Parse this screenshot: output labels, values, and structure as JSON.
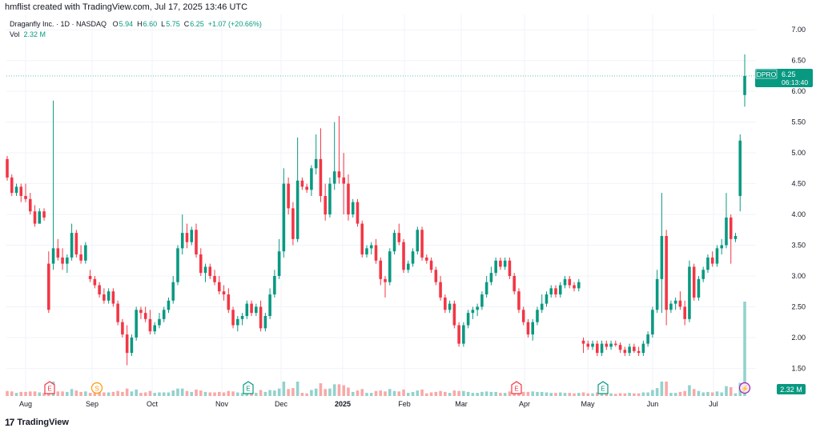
{
  "header": {
    "creator_text": "hmflist created with TradingView.com, Jul 17, 2025 13:46 UTC"
  },
  "legend": {
    "symbol_line": "Draganfly Inc. · 1D · NASDAQ",
    "o_label": "O",
    "o_value": "5.94",
    "h_label": "H",
    "h_value": "6.60",
    "l_label": "L",
    "l_value": "5.75",
    "c_label": "C",
    "c_value": "6.25",
    "change": "+1.07 (+20.66%)",
    "vol_label": "Vol",
    "vol_value": "2.32 M"
  },
  "badges": {
    "price_ticker": "DPRO",
    "price_value": "6.25",
    "countdown": "06:13:40",
    "volume_value": "2.32 M"
  },
  "footer": {
    "brand": "TradingView"
  },
  "colors": {
    "up": "#089981",
    "down": "#f23645",
    "vol_up": "#92d2cc",
    "vol_down": "#f7a9a7",
    "grid": "#f0f3fa",
    "axis_text": "#131722"
  },
  "chart_data": {
    "type": "candlestick",
    "y_ticks": [
      "7.00",
      "6.50",
      "6.00",
      "5.50",
      "5.00",
      "4.50",
      "4.00",
      "3.50",
      "3.00",
      "2.50",
      "2.00",
      "1.50"
    ],
    "ylim": [
      1.05,
      7.25
    ],
    "x_ticks": [
      "Aug",
      "Sep",
      "Oct",
      "Nov",
      "Dec",
      "2025",
      "Feb",
      "Mar",
      "Apr",
      "May",
      "Jun",
      "Jul"
    ],
    "events": [
      {
        "label": "E",
        "type": "earnings",
        "month": "Aug"
      },
      {
        "label": "S",
        "type": "split",
        "month": "Sep"
      },
      {
        "label": "E",
        "type": "earnings",
        "month": "Nov"
      },
      {
        "label": "E",
        "type": "earnings",
        "month": "Mar"
      },
      {
        "label": "E",
        "type": "earnings",
        "month": "May"
      },
      {
        "label": "⚡",
        "type": "flash",
        "month": "Jul"
      }
    ],
    "last_price": 6.25,
    "candles_ohlc_approx": [
      [
        4.9,
        4.95,
        4.55,
        4.6
      ],
      [
        4.6,
        4.65,
        4.3,
        4.35
      ],
      [
        4.35,
        4.5,
        4.3,
        4.45
      ],
      [
        4.45,
        4.5,
        4.2,
        4.3
      ],
      [
        4.3,
        4.5,
        4.2,
        4.25
      ],
      [
        4.25,
        4.35,
        4.0,
        4.05
      ],
      [
        4.05,
        4.15,
        3.8,
        3.85
      ],
      [
        3.85,
        4.1,
        3.85,
        4.05
      ],
      [
        4.05,
        4.1,
        3.9,
        3.95
      ],
      [
        3.2,
        3.4,
        2.4,
        2.45
      ],
      [
        3.2,
        5.85,
        3.1,
        3.45
      ],
      [
        3.45,
        3.6,
        3.25,
        3.3
      ],
      [
        3.3,
        3.45,
        3.1,
        3.2
      ],
      [
        3.2,
        3.35,
        3.05,
        3.3
      ],
      [
        3.3,
        3.85,
        3.25,
        3.7
      ],
      [
        3.7,
        3.75,
        3.3,
        3.35
      ],
      [
        3.35,
        3.5,
        3.2,
        3.25
      ],
      [
        3.25,
        3.55,
        3.2,
        3.5
      ],
      [
        3.0,
        3.1,
        2.9,
        2.95
      ],
      [
        2.95,
        3.0,
        2.8,
        2.85
      ],
      [
        2.85,
        2.9,
        2.65,
        2.7
      ],
      [
        2.7,
        2.8,
        2.55,
        2.6
      ],
      [
        2.6,
        2.8,
        2.55,
        2.75
      ],
      [
        2.75,
        2.8,
        2.5,
        2.55
      ],
      [
        2.55,
        2.6,
        2.2,
        2.25
      ],
      [
        2.25,
        2.3,
        2.0,
        2.05
      ],
      [
        2.05,
        2.2,
        1.55,
        1.75
      ],
      [
        1.75,
        2.05,
        1.7,
        2.0
      ],
      [
        2.0,
        2.5,
        1.95,
        2.45
      ],
      [
        2.45,
        2.5,
        2.3,
        2.4
      ],
      [
        2.4,
        2.5,
        2.25,
        2.3
      ],
      [
        2.3,
        2.45,
        2.05,
        2.1
      ],
      [
        2.1,
        2.25,
        2.05,
        2.2
      ],
      [
        2.2,
        2.4,
        2.15,
        2.3
      ],
      [
        2.3,
        2.5,
        2.25,
        2.45
      ],
      [
        2.45,
        2.65,
        2.4,
        2.6
      ],
      [
        2.6,
        3.0,
        2.55,
        2.9
      ],
      [
        2.9,
        3.5,
        2.85,
        3.45
      ],
      [
        3.45,
        4.0,
        3.35,
        3.7
      ],
      [
        3.7,
        3.85,
        3.45,
        3.55
      ],
      [
        3.55,
        3.8,
        3.5,
        3.75
      ],
      [
        3.75,
        3.85,
        3.3,
        3.35
      ],
      [
        3.35,
        3.45,
        3.0,
        3.05
      ],
      [
        3.05,
        3.2,
        2.9,
        3.15
      ],
      [
        3.15,
        3.2,
        2.95,
        3.0
      ],
      [
        3.0,
        3.1,
        2.85,
        2.9
      ],
      [
        2.9,
        3.0,
        2.7,
        2.75
      ],
      [
        2.75,
        2.85,
        2.6,
        2.7
      ],
      [
        2.7,
        2.8,
        2.4,
        2.45
      ],
      [
        2.45,
        2.5,
        2.15,
        2.2
      ],
      [
        2.2,
        2.35,
        2.1,
        2.3
      ],
      [
        2.3,
        2.4,
        2.2,
        2.35
      ],
      [
        2.35,
        2.6,
        2.3,
        2.55
      ],
      [
        2.55,
        2.6,
        2.35,
        2.4
      ],
      [
        2.4,
        2.55,
        2.35,
        2.5
      ],
      [
        2.5,
        2.6,
        2.1,
        2.15
      ],
      [
        2.15,
        2.4,
        2.1,
        2.35
      ],
      [
        2.35,
        2.8,
        2.3,
        2.7
      ],
      [
        2.7,
        3.1,
        2.65,
        3.0
      ],
      [
        3.0,
        3.6,
        2.95,
        3.4
      ],
      [
        3.4,
        4.75,
        3.3,
        4.5
      ],
      [
        4.5,
        4.6,
        4.0,
        4.1
      ],
      [
        4.1,
        4.2,
        3.5,
        3.6
      ],
      [
        3.6,
        5.25,
        3.55,
        4.55
      ],
      [
        4.55,
        4.6,
        4.4,
        4.45
      ],
      [
        4.45,
        4.5,
        4.35,
        4.4
      ],
      [
        4.4,
        4.8,
        4.3,
        4.75
      ],
      [
        4.75,
        5.3,
        4.65,
        4.9
      ],
      [
        4.9,
        5.4,
        4.2,
        4.3
      ],
      [
        4.3,
        4.5,
        3.9,
        4.0
      ],
      [
        4.0,
        4.6,
        3.95,
        4.5
      ],
      [
        4.5,
        5.5,
        4.4,
        4.7
      ],
      [
        4.7,
        5.6,
        4.5,
        4.6
      ],
      [
        4.6,
        5.0,
        4.0,
        4.5
      ],
      [
        4.5,
        4.65,
        3.9,
        4.0
      ],
      [
        4.0,
        4.25,
        3.95,
        4.2
      ],
      [
        4.2,
        4.25,
        3.8,
        3.85
      ],
      [
        3.85,
        3.9,
        3.3,
        3.35
      ],
      [
        3.35,
        3.5,
        3.3,
        3.45
      ],
      [
        3.45,
        3.55,
        3.35,
        3.5
      ],
      [
        3.5,
        3.6,
        3.2,
        3.25
      ],
      [
        3.25,
        3.3,
        2.85,
        2.95
      ],
      [
        2.95,
        3.0,
        2.65,
        2.9
      ],
      [
        2.9,
        3.45,
        2.85,
        3.4
      ],
      [
        3.4,
        3.75,
        3.35,
        3.7
      ],
      [
        3.7,
        3.85,
        3.5,
        3.55
      ],
      [
        3.55,
        3.6,
        3.05,
        3.1
      ],
      [
        3.1,
        3.25,
        3.05,
        3.2
      ],
      [
        3.2,
        3.45,
        3.15,
        3.4
      ],
      [
        3.4,
        3.8,
        3.35,
        3.75
      ],
      [
        3.75,
        3.8,
        3.25,
        3.3
      ],
      [
        3.3,
        3.35,
        3.2,
        3.25
      ],
      [
        3.25,
        3.3,
        3.05,
        3.1
      ],
      [
        3.1,
        3.15,
        2.85,
        2.9
      ],
      [
        2.9,
        3.0,
        2.6,
        2.65
      ],
      [
        2.65,
        2.7,
        2.4,
        2.45
      ],
      [
        2.45,
        2.6,
        2.4,
        2.55
      ],
      [
        2.55,
        2.6,
        2.15,
        2.2
      ],
      [
        2.2,
        2.25,
        1.85,
        1.9
      ],
      [
        1.9,
        2.25,
        1.85,
        2.2
      ],
      [
        2.2,
        2.45,
        2.15,
        2.4
      ],
      [
        2.4,
        2.5,
        2.3,
        2.45
      ],
      [
        2.45,
        2.55,
        2.35,
        2.5
      ],
      [
        2.5,
        2.75,
        2.45,
        2.7
      ],
      [
        2.7,
        3.0,
        2.65,
        2.9
      ],
      [
        2.9,
        3.15,
        2.85,
        3.05
      ],
      [
        3.05,
        3.3,
        3.0,
        3.25
      ],
      [
        3.25,
        3.3,
        3.1,
        3.15
      ],
      [
        3.15,
        3.3,
        3.1,
        3.25
      ],
      [
        3.25,
        3.3,
        2.95,
        3.0
      ],
      [
        3.0,
        3.05,
        2.7,
        2.75
      ],
      [
        2.75,
        2.8,
        2.4,
        2.45
      ],
      [
        2.45,
        2.5,
        2.2,
        2.25
      ],
      [
        2.25,
        2.3,
        2.0,
        2.05
      ],
      [
        2.05,
        2.3,
        1.95,
        2.25
      ],
      [
        2.25,
        2.5,
        2.2,
        2.45
      ],
      [
        2.45,
        2.7,
        2.4,
        2.55
      ],
      [
        2.55,
        2.75,
        2.5,
        2.7
      ],
      [
        2.7,
        2.85,
        2.65,
        2.8
      ],
      [
        2.8,
        2.85,
        2.65,
        2.7
      ],
      [
        2.7,
        2.9,
        2.65,
        2.85
      ],
      [
        2.85,
        3.0,
        2.8,
        2.95
      ],
      [
        2.95,
        3.0,
        2.8,
        2.85
      ],
      [
        2.85,
        2.9,
        2.75,
        2.8
      ],
      [
        2.8,
        2.95,
        2.75,
        2.9
      ],
      [
        1.95,
        2.0,
        1.75,
        1.9
      ],
      [
        1.9,
        1.95,
        1.8,
        1.85
      ],
      [
        1.85,
        1.95,
        1.8,
        1.9
      ],
      [
        1.9,
        1.95,
        1.7,
        1.75
      ],
      [
        1.75,
        1.95,
        1.7,
        1.9
      ],
      [
        1.9,
        1.95,
        1.8,
        1.85
      ],
      [
        1.85,
        1.95,
        1.8,
        1.9
      ],
      [
        1.9,
        1.95,
        1.85,
        1.88
      ],
      [
        1.88,
        1.92,
        1.75,
        1.8
      ],
      [
        1.8,
        1.85,
        1.7,
        1.75
      ],
      [
        1.75,
        1.9,
        1.7,
        1.85
      ],
      [
        1.85,
        1.9,
        1.75,
        1.78
      ],
      [
        1.78,
        1.85,
        1.7,
        1.75
      ],
      [
        1.75,
        1.95,
        1.7,
        1.9
      ],
      [
        1.9,
        2.1,
        1.85,
        2.05
      ],
      [
        2.05,
        2.5,
        2.0,
        2.45
      ],
      [
        2.45,
        3.1,
        2.4,
        2.95
      ],
      [
        2.95,
        4.35,
        2.4,
        3.65
      ],
      [
        3.65,
        3.75,
        2.2,
        2.45
      ],
      [
        2.45,
        2.6,
        2.4,
        2.55
      ],
      [
        2.55,
        2.65,
        2.45,
        2.6
      ],
      [
        2.6,
        2.75,
        2.45,
        2.5
      ],
      [
        2.5,
        2.6,
        2.2,
        2.3
      ],
      [
        2.3,
        3.25,
        2.25,
        3.15
      ],
      [
        3.15,
        3.2,
        2.6,
        2.65
      ],
      [
        2.65,
        3.0,
        2.6,
        2.95
      ],
      [
        2.95,
        3.15,
        2.9,
        3.1
      ],
      [
        3.1,
        3.35,
        3.05,
        3.3
      ],
      [
        3.3,
        3.4,
        3.15,
        3.2
      ],
      [
        3.2,
        3.5,
        3.15,
        3.45
      ],
      [
        3.45,
        3.6,
        3.35,
        3.5
      ],
      [
        3.5,
        4.35,
        3.45,
        3.95
      ],
      [
        3.95,
        4.0,
        3.2,
        3.6
      ],
      [
        3.6,
        3.7,
        3.55,
        3.65
      ],
      [
        4.3,
        5.3,
        4.05,
        5.2
      ],
      [
        5.94,
        6.6,
        5.75,
        6.25
      ]
    ]
  }
}
